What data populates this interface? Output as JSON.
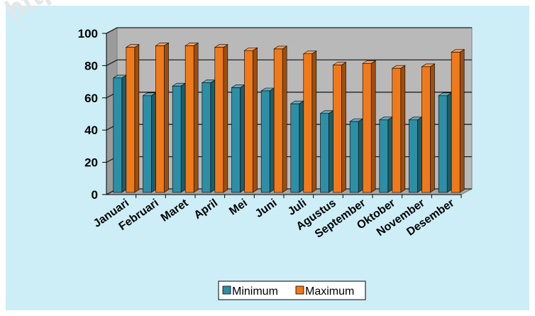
{
  "watermark": "https:",
  "colors": {
    "background": "#cdeef7",
    "plot_area": "#b9b9b9",
    "minimum": "#2d8fa5",
    "maximum": "#f07a1a"
  },
  "chart_data": {
    "type": "bar",
    "categories": [
      "Januari",
      "Februari",
      "Maret",
      "April",
      "Mei",
      "Juni",
      "Juli",
      "Agustus",
      "September",
      "Oktober",
      "November",
      "Desember"
    ],
    "series": [
      {
        "name": "Minimum",
        "values": [
          71,
          60,
          66,
          68,
          65,
          63,
          55,
          49,
          44,
          45,
          45,
          60
        ]
      },
      {
        "name": "Maximum",
        "values": [
          90,
          91,
          91,
          90,
          88,
          89,
          86,
          79,
          80,
          77,
          78,
          87
        ]
      }
    ],
    "yticks": [
      0,
      20,
      40,
      60,
      80,
      100
    ],
    "ylim": [
      0,
      100
    ],
    "grid": true,
    "legend_position": "bottom",
    "style": "3d-bars"
  }
}
